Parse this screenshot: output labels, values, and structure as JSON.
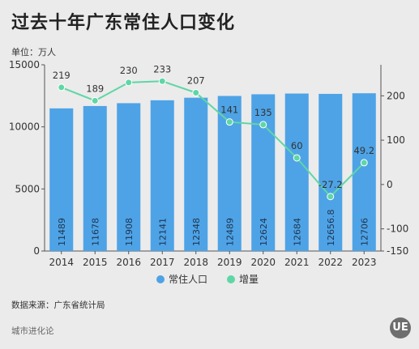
{
  "title": "过去十年广东常住人口变化",
  "unit": "单位：万人",
  "source": "数据来源：广东省统计局",
  "brand": "城市进化论",
  "logo_text": "UE",
  "colors": {
    "bar": "#4ea3e6",
    "line": "#5fd6a6",
    "bg": "#ebebeb"
  },
  "chart_data": {
    "type": "bar+line",
    "categories": [
      "2014",
      "2015",
      "2016",
      "2017",
      "2018",
      "2019",
      "2020",
      "2021",
      "2022",
      "2023"
    ],
    "series": [
      {
        "name": "常住人口",
        "type": "bar",
        "axis": "left",
        "values": [
          11489,
          11678,
          11908,
          12141,
          12348,
          12489,
          12624,
          12684,
          12656.8,
          12706
        ],
        "labels": [
          "11489",
          "11678",
          "11908",
          "12141",
          "12348",
          "12489",
          "12624",
          "12684",
          "12656.8",
          "12706"
        ]
      },
      {
        "name": "增量",
        "type": "line",
        "axis": "right",
        "values": [
          219,
          189,
          230,
          233,
          207,
          141,
          135,
          60,
          -27.2,
          49.2
        ],
        "labels": [
          "219",
          "189",
          "230",
          "233",
          "207",
          "141",
          "135",
          "60",
          "-27.2",
          "49.2"
        ]
      }
    ],
    "y_left": {
      "min": 0,
      "max": 15000,
      "ticks": [
        0,
        5000,
        10000,
        15000
      ]
    },
    "y_right": {
      "min": -150,
      "max": 270,
      "ticks": [
        -150,
        -100,
        0,
        100,
        200
      ]
    },
    "legend_position": "bottom"
  }
}
